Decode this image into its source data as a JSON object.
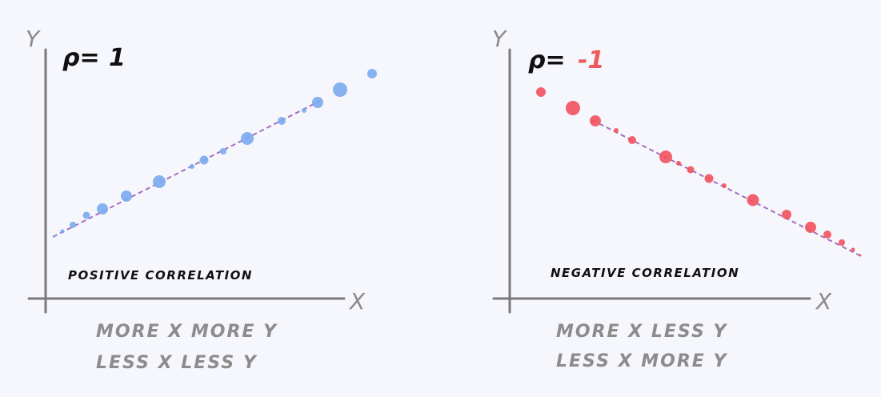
{
  "panels": [
    {
      "y_axis": "Y",
      "x_axis": "X",
      "rho_label": "ρ=",
      "rho": "1",
      "correlation": "POSITIVE CORRELATION",
      "lines": [
        "MORE X MORE Y",
        "LESS X LESS Y"
      ]
    },
    {
      "y_axis": "Y",
      "x_axis": "X",
      "rho_label": "ρ=",
      "rho": "-1",
      "correlation": "NEGATIVE CORRELATION",
      "lines": [
        "MORE X LESS Y",
        "LESS X MORE Y"
      ]
    }
  ]
}
